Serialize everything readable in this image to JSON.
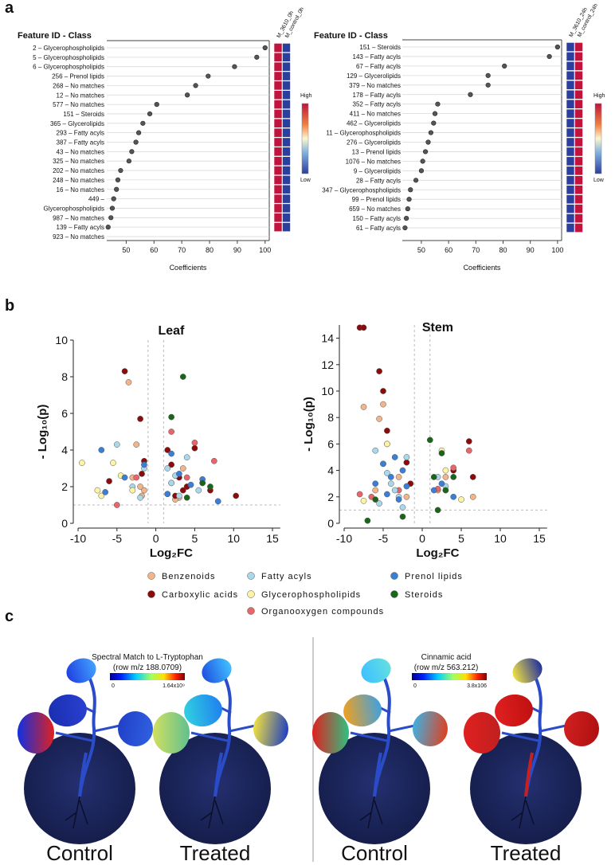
{
  "figure": {
    "panel_labels": [
      "a",
      "b",
      "c"
    ]
  },
  "chart_data": [
    {
      "type": "dotplot",
      "title": "Feature ID - Class",
      "categories": [
        "2 – Glycerophospholipids",
        "5 – Glycerophospholipids",
        "6 – Glycerophospholipids",
        "256 – Prenol lipids",
        "268 – No matches",
        "12 – No matches",
        "577 – No matches",
        "151 – Steroids",
        "365 – Glycerolipids",
        "293 – Fatty acyls",
        "387 – Fatty acyls",
        "43 – No matches",
        "325 – No matches",
        "202 – No matches",
        "248 – No matches",
        "16 – No matches",
        "449 –",
        "Glycerophospholipids",
        "987 – No matches",
        "139 – Fatty acyls",
        "923 – No matches"
      ],
      "values": [
        100,
        97,
        89,
        79.5,
        75,
        72,
        61,
        58.5,
        56,
        54.5,
        53.5,
        52,
        51,
        48,
        47,
        46.5,
        45.5,
        45,
        44.5,
        43.5,
        null
      ],
      "x_label": "Coefficients",
      "xlim": [
        43,
        101.5
      ],
      "xticks": [
        50,
        60,
        70,
        80,
        90,
        100
      ],
      "point_color": "#555555",
      "heatmap": {
        "columns": [
          "M_3610_0h",
          "M_control_0h"
        ],
        "colors": [
          "#2b3f9e",
          "#c0143c"
        ],
        "scale_labels": [
          "High",
          "Low"
        ],
        "values": [
          [
            1,
            0
          ],
          [
            1,
            0
          ],
          [
            1,
            0
          ],
          [
            1,
            0
          ],
          [
            1,
            0
          ],
          [
            1,
            0
          ],
          [
            1,
            0
          ],
          [
            1,
            0
          ],
          [
            1,
            0
          ],
          [
            1,
            0
          ],
          [
            1,
            0
          ],
          [
            1,
            0
          ],
          [
            1,
            0
          ],
          [
            1,
            0
          ],
          [
            1,
            0
          ],
          [
            1,
            0
          ],
          [
            1,
            0
          ],
          [
            1,
            0
          ],
          [
            1,
            0
          ],
          [
            1,
            0
          ],
          null
        ]
      }
    },
    {
      "type": "dotplot",
      "title": "Feature ID - Class",
      "categories": [
        "151 – Steroids",
        "143 – Fatty acyls",
        "67 – Fatty acyls",
        "129 – Glycerolipids",
        "379 – No matches",
        "178 – Fatty acyls",
        "352 – Fatty acyls",
        "411 – No matches",
        "462 – Glycerolipids",
        "11 – Glycerophospholipids",
        "276 – Glycerolipids",
        "13 – Prenol lipids",
        "1076 – No matches",
        "9 – Glycerolipids",
        "28 – Fatty acyls",
        "347 – Glycerophospholipids",
        "99 – Prenol lipids",
        "659 – No matches",
        "150 – Fatty acyls",
        "61 – Fatty acyls"
      ],
      "values": [
        100,
        97,
        80.5,
        74.5,
        74.5,
        68,
        56,
        55,
        54.5,
        53.5,
        52.5,
        51.5,
        50.5,
        50,
        48,
        46,
        45.5,
        45,
        44.5,
        44
      ],
      "x_label": "Coefficients",
      "xlim": [
        43,
        101.5
      ],
      "xticks": [
        50,
        60,
        70,
        80,
        90,
        100
      ],
      "point_color": "#555555",
      "heatmap": {
        "columns": [
          "M_3610_24h",
          "M_control_24h"
        ],
        "colors": [
          "#2b3f9e",
          "#c0143c"
        ],
        "scale_labels": [
          "High",
          "Low"
        ],
        "values": [
          [
            0,
            1
          ],
          [
            0,
            1
          ],
          [
            0,
            1
          ],
          [
            0,
            1
          ],
          [
            0,
            1
          ],
          [
            0,
            1
          ],
          [
            0,
            1
          ],
          [
            0,
            1
          ],
          [
            0,
            1
          ],
          [
            0,
            1
          ],
          [
            0,
            1
          ],
          [
            0,
            1
          ],
          [
            0,
            1
          ],
          [
            0,
            1
          ],
          [
            0,
            1
          ],
          [
            0,
            1
          ],
          [
            0,
            1
          ],
          [
            0,
            1
          ],
          [
            0,
            1
          ],
          [
            0,
            1
          ]
        ]
      }
    },
    {
      "type": "scatter",
      "title": "Leaf",
      "x_label": "Log₂FC",
      "y_label": "- Log₁₀(p)",
      "xlim": [
        -10,
        16
      ],
      "xticks": [
        -10,
        -5,
        0,
        5,
        10,
        15
      ],
      "ylim": [
        0,
        10
      ],
      "yticks": [
        0,
        2,
        4,
        6,
        8,
        10
      ],
      "thresholds": {
        "x": [
          -1,
          1
        ],
        "y": 1
      },
      "series": [
        {
          "name": "Benzenoids",
          "color": "#f2b48a",
          "x": [
            -3.5,
            -3,
            -2,
            -1.8,
            -2.5,
            1.5,
            2,
            3,
            3.5,
            -1.5,
            2.5,
            4
          ],
          "y": [
            7.7,
            2.5,
            2.0,
            1.5,
            4.3,
            1.6,
            2.2,
            1.4,
            3.0,
            1.8,
            1.3,
            2.0
          ]
        },
        {
          "name": "Carboxylic acids",
          "color": "#8b0a0a",
          "x": [
            -4,
            -2,
            -1.5,
            1.5,
            2,
            3,
            4,
            5,
            6,
            10.3,
            -6,
            3.5,
            2.5,
            7,
            -1.8
          ],
          "y": [
            8.3,
            5.7,
            3.4,
            4.0,
            3.2,
            2.5,
            2.0,
            4.1,
            2.2,
            1.5,
            2.3,
            1.8,
            1.5,
            1.8,
            2.7
          ]
        },
        {
          "name": "Organooxygen compounds",
          "color": "#e8656a",
          "x": [
            -2.5,
            2,
            5,
            7.5,
            -5,
            4
          ],
          "y": [
            2.5,
            5.0,
            4.4,
            3.4,
            1.0,
            2.5
          ]
        },
        {
          "name": "Fatty acyls",
          "color": "#a8d8ea",
          "x": [
            -5,
            -3,
            -2,
            1.5,
            2,
            3,
            4,
            5.5,
            -1.5,
            2.5
          ],
          "y": [
            4.3,
            2.0,
            1.4,
            3.0,
            2.2,
            1.5,
            3.6,
            1.8,
            3.0,
            2.6
          ]
        },
        {
          "name": "Glycerophospholipids",
          "color": "#fdf3a2",
          "x": [
            -9.5,
            -7,
            -5.5,
            -4.5,
            -3,
            -7.5
          ],
          "y": [
            3.3,
            1.5,
            3.3,
            2.6,
            1.8,
            1.8
          ]
        },
        {
          "name": "Prenol lipids",
          "color": "#3a7fd5",
          "x": [
            -7,
            -4,
            -6.5,
            2,
            3,
            4.5,
            6,
            8,
            1.5,
            -1.5
          ],
          "y": [
            4.0,
            2.5,
            1.7,
            3.8,
            2.7,
            2.1,
            2.4,
            1.2,
            1.6,
            3.2
          ]
        },
        {
          "name": "Steroids",
          "color": "#19661a",
          "x": [
            3.5,
            2,
            6,
            7,
            4
          ],
          "y": [
            8.0,
            5.8,
            2.2,
            2.0,
            1.4
          ]
        }
      ]
    },
    {
      "type": "scatter",
      "title": "Stem",
      "x_label": "Log₂FC",
      "y_label": "- Log₁₀(p)",
      "xlim": [
        -10,
        16
      ],
      "xticks": [
        -10,
        -5,
        0,
        5,
        10,
        15
      ],
      "ylim": [
        0,
        15
      ],
      "yticks": [
        0,
        2,
        4,
        6,
        8,
        10,
        12,
        14
      ],
      "thresholds": {
        "x": [
          -1,
          1
        ],
        "y": 1
      },
      "series": [
        {
          "name": "Benzenoids",
          "color": "#f2b48a",
          "x": [
            -7.5,
            -5,
            -5.5,
            -4.5,
            -3,
            -6,
            -2,
            2,
            3,
            6.5
          ],
          "y": [
            8.8,
            9.0,
            7.9,
            6.0,
            3.5,
            2.5,
            2.0,
            2.5,
            3.5,
            2.0
          ]
        },
        {
          "name": "Carboxylic acids",
          "color": "#8b0a0a",
          "x": [
            -8,
            -7.5,
            -5.5,
            -5,
            -4.5,
            -2,
            -1.5,
            4,
            6,
            6.5,
            3
          ],
          "y": [
            14.8,
            14.8,
            11.5,
            10,
            7.0,
            4.6,
            3.0,
            4.0,
            6.2,
            3.5,
            2.5
          ]
        },
        {
          "name": "Organooxygen compounds",
          "color": "#e8656a",
          "x": [
            -8,
            -6.5,
            -3,
            2,
            4,
            6
          ],
          "y": [
            2.2,
            2.0,
            2.5,
            2.6,
            4.2,
            5.5
          ]
        },
        {
          "name": "Fatty acyls",
          "color": "#a8d8ea",
          "x": [
            -6,
            -5,
            -4,
            -3,
            -2,
            -4.5,
            -3.5,
            -5.5,
            -2.5,
            2,
            3
          ],
          "y": [
            5.5,
            4.5,
            3.0,
            2.0,
            5.0,
            3.8,
            2.5,
            1.5,
            1.2,
            3.5,
            2.8
          ]
        },
        {
          "name": "Glycerophospholipids",
          "color": "#fdf3a2",
          "x": [
            -4.5,
            -7.5,
            3,
            5,
            2.5
          ],
          "y": [
            6.0,
            1.7,
            4.0,
            1.8,
            5.5
          ]
        },
        {
          "name": "Prenol lipids",
          "color": "#3a7fd5",
          "x": [
            -5,
            -4,
            -3,
            -2,
            -3.5,
            -6,
            -4.5,
            2.5,
            4,
            1.5,
            -2.5
          ],
          "y": [
            4.5,
            3.5,
            1.8,
            2.8,
            5.0,
            3.0,
            2.2,
            3.0,
            2.0,
            2.5,
            4.0
          ]
        },
        {
          "name": "Steroids",
          "color": "#19661a",
          "x": [
            -7,
            -6,
            1,
            1.5,
            2,
            3,
            4,
            -2.5,
            2.5
          ],
          "y": [
            0.2,
            1.8,
            6.3,
            3.5,
            1.0,
            2.5,
            3.5,
            0.5,
            5.3
          ]
        }
      ]
    }
  ],
  "images": [
    {
      "title": "Spectral Match to L-Tryptophan",
      "subtitle": "(row m/z 188.0709)",
      "scale_labels": [
        "0",
        "1.64x10⁹"
      ],
      "panels": [
        "Control",
        "Treated"
      ]
    },
    {
      "title": "Cinnamic acid",
      "subtitle": "(row m/z 563.212)",
      "scale_labels": [
        "0",
        "3.8x106"
      ],
      "panels": [
        "Control",
        "Treated"
      ]
    }
  ]
}
